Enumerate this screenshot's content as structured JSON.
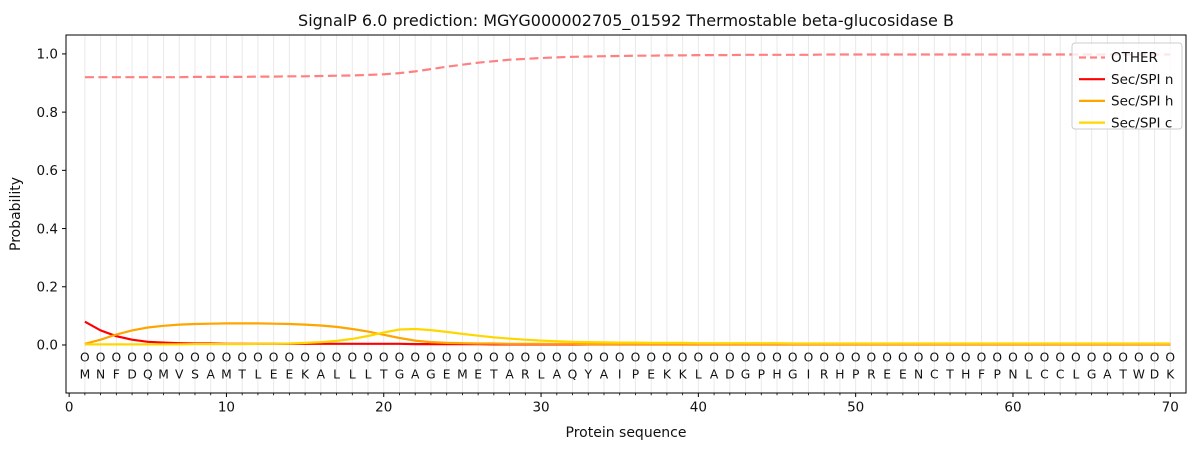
{
  "figure": {
    "title": "SignalP 6.0 prediction: MGYG000002705_01592 Thermostable beta-glucosidase B"
  },
  "chart_data": {
    "type": "line",
    "title": "SignalP 6.0 prediction: MGYG000002705_01592 Thermostable beta-glucosidase B",
    "xlabel": "Protein sequence",
    "ylabel": "Probability",
    "xlim": [
      -0.2,
      71.0
    ],
    "ylim": [
      -0.165,
      1.065
    ],
    "grid": "vertical-per-residue",
    "legend_position": "upper right",
    "x_ticks": {
      "values": [
        0,
        10,
        20,
        30,
        40,
        50,
        60,
        70
      ],
      "labels": [
        "0",
        "10",
        "20",
        "30",
        "40",
        "50",
        "60",
        "70"
      ]
    },
    "y_ticks": {
      "values": [
        0.0,
        0.2,
        0.4,
        0.6,
        0.8,
        1.0
      ],
      "labels": [
        "0.0",
        "0.2",
        "0.4",
        "0.6",
        "0.8",
        "1.0"
      ]
    },
    "colors": {
      "grid": "#e9e9e9",
      "axis": "#000000",
      "seq_marker": "#808080",
      "seq_letter": "#333333",
      "legend_border": "#cccccc"
    },
    "sequence": "MNFDQMVSAMTLEEKALLLTGAGEMETARLAQYAIPEKKLADGPHGIRHPREENCTHFPNLCCLGATWDK",
    "sequence_marker_char": "O",
    "series": [
      {
        "name": "OTHER",
        "color": "#ff8080",
        "dashed": true,
        "values": [
          0.92,
          0.92,
          0.92,
          0.92,
          0.92,
          0.92,
          0.92,
          0.921,
          0.921,
          0.921,
          0.921,
          0.922,
          0.922,
          0.923,
          0.923,
          0.924,
          0.925,
          0.926,
          0.928,
          0.93,
          0.934,
          0.94,
          0.948,
          0.956,
          0.963,
          0.97,
          0.975,
          0.98,
          0.983,
          0.986,
          0.988,
          0.99,
          0.991,
          0.992,
          0.993,
          0.994,
          0.994,
          0.995,
          0.995,
          0.996,
          0.996,
          0.996,
          0.997,
          0.997,
          0.997,
          0.997,
          0.997,
          0.998,
          0.998,
          0.998,
          0.998,
          0.998,
          0.998,
          0.998,
          0.998,
          0.998,
          0.998,
          0.998,
          0.998,
          0.998,
          0.998,
          0.998,
          0.998,
          0.998,
          0.998,
          0.998,
          0.998,
          0.998,
          0.998,
          0.998
        ]
      },
      {
        "name": "Sec/SPI n",
        "color": "#ff0000",
        "dashed": false,
        "values": [
          0.08,
          0.05,
          0.03,
          0.018,
          0.011,
          0.008,
          0.006,
          0.005,
          0.005,
          0.004,
          0.004,
          0.004,
          0.004,
          0.004,
          0.004,
          0.004,
          0.004,
          0.004,
          0.004,
          0.004,
          0.004,
          0.003,
          0.003,
          0.003,
          0.003,
          0.003,
          0.002,
          0.002,
          0.002,
          0.002,
          0.002,
          0.002,
          0.002,
          0.002,
          0.002,
          0.002,
          0.002,
          0.002,
          0.002,
          0.002,
          0.002,
          0.002,
          0.002,
          0.002,
          0.002,
          0.002,
          0.002,
          0.002,
          0.002,
          0.002,
          0.002,
          0.002,
          0.002,
          0.002,
          0.002,
          0.002,
          0.002,
          0.002,
          0.002,
          0.002,
          0.002,
          0.002,
          0.002,
          0.002,
          0.002,
          0.002,
          0.002,
          0.002,
          0.002,
          0.002
        ]
      },
      {
        "name": "Sec/SPI h",
        "color": "#ffa500",
        "dashed": false,
        "values": [
          0.004,
          0.018,
          0.036,
          0.05,
          0.06,
          0.066,
          0.07,
          0.072,
          0.073,
          0.074,
          0.074,
          0.074,
          0.073,
          0.072,
          0.07,
          0.067,
          0.062,
          0.055,
          0.046,
          0.035,
          0.024,
          0.015,
          0.01,
          0.007,
          0.006,
          0.005,
          0.005,
          0.004,
          0.004,
          0.004,
          0.004,
          0.004,
          0.003,
          0.003,
          0.003,
          0.003,
          0.003,
          0.003,
          0.003,
          0.003,
          0.003,
          0.003,
          0.003,
          0.003,
          0.003,
          0.003,
          0.003,
          0.003,
          0.003,
          0.003,
          0.003,
          0.003,
          0.003,
          0.003,
          0.003,
          0.003,
          0.003,
          0.003,
          0.003,
          0.003,
          0.003,
          0.003,
          0.003,
          0.003,
          0.003,
          0.003,
          0.003,
          0.003,
          0.003,
          0.003
        ]
      },
      {
        "name": "Sec/SPI c",
        "color": "#ffd700",
        "dashed": false,
        "values": [
          0.002,
          0.002,
          0.002,
          0.002,
          0.002,
          0.002,
          0.002,
          0.003,
          0.003,
          0.003,
          0.003,
          0.004,
          0.004,
          0.005,
          0.007,
          0.01,
          0.014,
          0.021,
          0.031,
          0.043,
          0.053,
          0.055,
          0.051,
          0.045,
          0.038,
          0.032,
          0.026,
          0.022,
          0.018,
          0.015,
          0.013,
          0.011,
          0.01,
          0.009,
          0.008,
          0.008,
          0.007,
          0.007,
          0.007,
          0.006,
          0.006,
          0.006,
          0.006,
          0.006,
          0.006,
          0.005,
          0.005,
          0.005,
          0.005,
          0.005,
          0.005,
          0.005,
          0.005,
          0.005,
          0.005,
          0.005,
          0.005,
          0.005,
          0.005,
          0.005,
          0.005,
          0.005,
          0.005,
          0.005,
          0.005,
          0.005,
          0.005,
          0.005,
          0.005,
          0.005
        ]
      }
    ]
  }
}
